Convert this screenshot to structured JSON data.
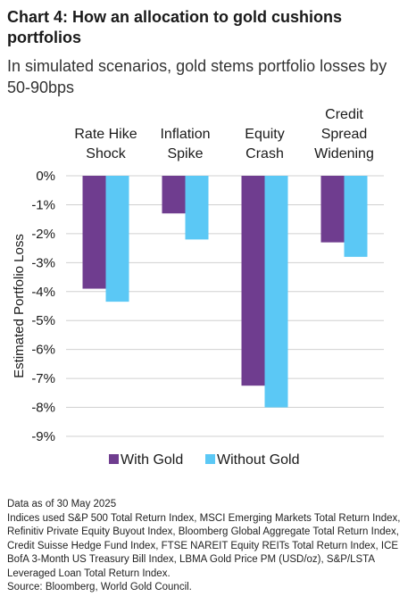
{
  "header": {
    "title": "Chart 4: How an allocation to gold cushions portfolios",
    "subtitle": "In simulated scenarios, gold stems portfolio losses by 50-90bps"
  },
  "chart_data": {
    "type": "bar",
    "categories": [
      [
        "Rate Hike",
        "Shock"
      ],
      [
        "Inflation",
        "Spike"
      ],
      [
        "Equity",
        "Crash"
      ],
      [
        "Credit",
        "Spread",
        "Widening"
      ]
    ],
    "series": [
      {
        "name": "With Gold",
        "values": [
          -3.9,
          -1.3,
          -7.25,
          -2.3
        ],
        "color": "#6f3d8f"
      },
      {
        "name": "Without Gold",
        "values": [
          -4.35,
          -2.2,
          -8.0,
          -2.8
        ],
        "color": "#5bc8f5"
      }
    ],
    "ylabel": "Estimated Portfolio Loss",
    "ylim": [
      -9,
      0
    ],
    "yticks": [
      0,
      -1,
      -2,
      -3,
      -4,
      -5,
      -6,
      -7,
      -8,
      -9
    ],
    "ytick_labels": [
      "0%",
      "-1%",
      "-2%",
      "-3%",
      "-4%",
      "-5%",
      "-6%",
      "-7%",
      "-8%",
      "-9%"
    ],
    "grid": true,
    "legend": "bottom"
  },
  "footer": {
    "notes": [
      "Data as of 30 May 2025",
      "Indices used S&P 500 Total Return Index, MSCI Emerging Markets Total Return Index, Refinitiv Private Equity Buyout Index, Bloomberg Global Aggregate Total Return Index, Credit Suisse Hedge Fund Index, FTSE NAREIT Equity REITs Total Return Index, ICE BofA 3-Month US Treasury Bill Index, LBMA Gold Price PM (USD/oz), S&P/LSTA Leveraged Loan Total Return Index.",
      "Source: Bloomberg, World Gold Council."
    ]
  }
}
